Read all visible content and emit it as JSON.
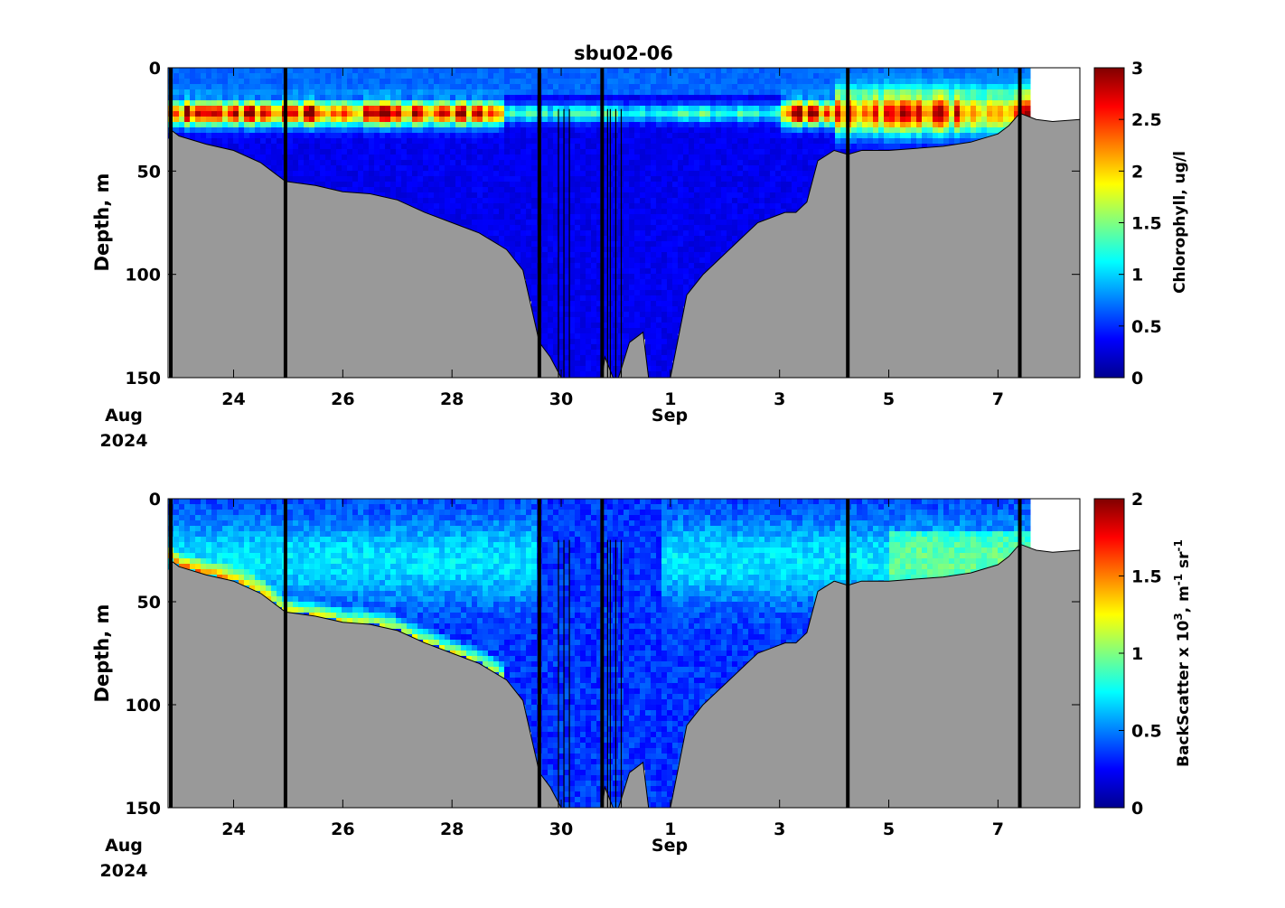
{
  "chart_data": {
    "type": "heatmap",
    "title": "sbu02-06",
    "x_ticks": [
      "24",
      "26",
      "28",
      "30",
      "1",
      "3",
      "5",
      "7"
    ],
    "x_tick_days": [
      24,
      26,
      28,
      30,
      32,
      34,
      36,
      38
    ],
    "x_range_days": [
      22.8,
      39.5
    ],
    "month_labels": [
      {
        "text": "Aug",
        "year": "2024"
      },
      {
        "text": "Sep",
        "year": ""
      }
    ],
    "profile_breaks_days": [
      22.85,
      24.95,
      29.6,
      30.75,
      35.25,
      38.4
    ],
    "thin_line_days": [
      29.95,
      30.05,
      30.15,
      30.85,
      30.9,
      31.0,
      31.1
    ],
    "bottom_depth": {
      "days": [
        22.85,
        23.0,
        23.5,
        24.0,
        24.5,
        24.95,
        25.5,
        26.0,
        26.5,
        27.0,
        27.5,
        28.0,
        28.5,
        29.0,
        29.3,
        29.6,
        29.8,
        30.0,
        30.3,
        30.75,
        30.8,
        30.95,
        31.05,
        31.25,
        31.5,
        31.6,
        31.7,
        31.8,
        32.0,
        32.3,
        32.6,
        33.0,
        33.4,
        33.6,
        33.9,
        34.1,
        34.3,
        34.5,
        34.7,
        35.0,
        35.25,
        35.5,
        36.0,
        36.5,
        37.0,
        37.5,
        38.0,
        38.2,
        38.4,
        38.7,
        39.0,
        39.5
      ],
      "depths": [
        30,
        33,
        37,
        40,
        46,
        55,
        57,
        60,
        61,
        64,
        70,
        75,
        80,
        88,
        98,
        133,
        140,
        150,
        150,
        150,
        140,
        150,
        150,
        133,
        128,
        150,
        150,
        150,
        150,
        110,
        100,
        90,
        80,
        75,
        72,
        70,
        70,
        65,
        45,
        40,
        42,
        40,
        40,
        39,
        38,
        36,
        32,
        28,
        22,
        25,
        26,
        25
      ]
    },
    "panels": [
      {
        "id": "chlorophyll",
        "ylabel": "Depth, m",
        "y_ticks": [
          "0",
          "50",
          "100",
          "150"
        ],
        "y_tick_values": [
          0,
          50,
          100,
          150
        ],
        "ylim": [
          150,
          0
        ],
        "colorbar_label": "Chlorophyll, ug/l",
        "colorbar_ticks": [
          "0",
          "0.5",
          "1",
          "1.5",
          "2",
          "2.5",
          "3"
        ],
        "colorbar_values": [
          0,
          0.5,
          1,
          1.5,
          2,
          2.5,
          3
        ],
        "clim": [
          0,
          3
        ]
      },
      {
        "id": "backscatter",
        "ylabel": "Depth, m",
        "y_ticks": [
          "0",
          "50",
          "100",
          "150"
        ],
        "y_tick_values": [
          0,
          50,
          100,
          150
        ],
        "ylim": [
          150,
          0
        ],
        "colorbar_label": "BackScatter x 10",
        "colorbar_label_sup": "3",
        "colorbar_label_rest": ", m",
        "colorbar_label_sup2": "-1",
        "colorbar_label_rest2": " sr",
        "colorbar_label_sup3": "-1",
        "colorbar_ticks": [
          "0",
          "0.5",
          "1",
          "1.5",
          "2"
        ],
        "colorbar_values": [
          0,
          0.5,
          1,
          1.5,
          2
        ],
        "clim": [
          0,
          2
        ]
      }
    ],
    "colors": {
      "bathymetry": "#999999",
      "background": "#ffffff",
      "colormap": "jet"
    }
  }
}
